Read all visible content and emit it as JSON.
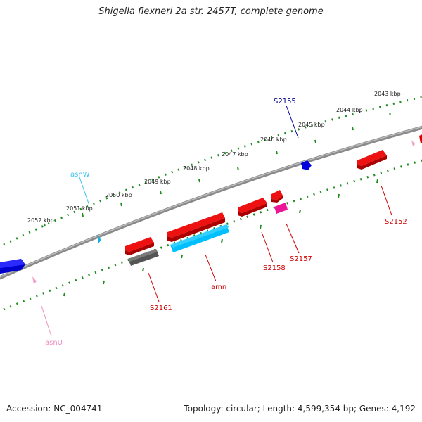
{
  "title": "Shigella flexneri 2a str. 2457T, complete genome",
  "footer": {
    "accession": "Accession: NC_004741",
    "stats": "Topology: circular; Length: 4,599,354 bp; Genes: 4,192"
  },
  "scale_labels": [
    "2052 kbp",
    "2051 kbp",
    "2050 kbp",
    "2049 kbp",
    "2048 kbp",
    "2047 kbp",
    "2046 kbp",
    "2045 kbp",
    "2044 kbp",
    "2043 kbp"
  ],
  "features": [
    {
      "id": "S2155",
      "color": "#00008b"
    },
    {
      "id": "asnW",
      "color": "#3ec1ee"
    },
    {
      "id": "S2152",
      "color": "#cc0000"
    },
    {
      "id": "S2157",
      "color": "#cc0000"
    },
    {
      "id": "S2158",
      "color": "#cc0000"
    },
    {
      "id": "amn",
      "color": "#cc0000"
    },
    {
      "id": "S2161",
      "color": "#cc0000"
    },
    {
      "id": "asnU",
      "color": "#ee8fbf"
    }
  ],
  "colors": {
    "backbone": "#808080",
    "ticks": "#228b22",
    "cds": "#ee0000",
    "rna": "#00bfff",
    "trna": "#ff69b4",
    "gene_blue": "#0000ee",
    "grey_gene": "#666666",
    "magenta_gene": "#ff1493"
  }
}
